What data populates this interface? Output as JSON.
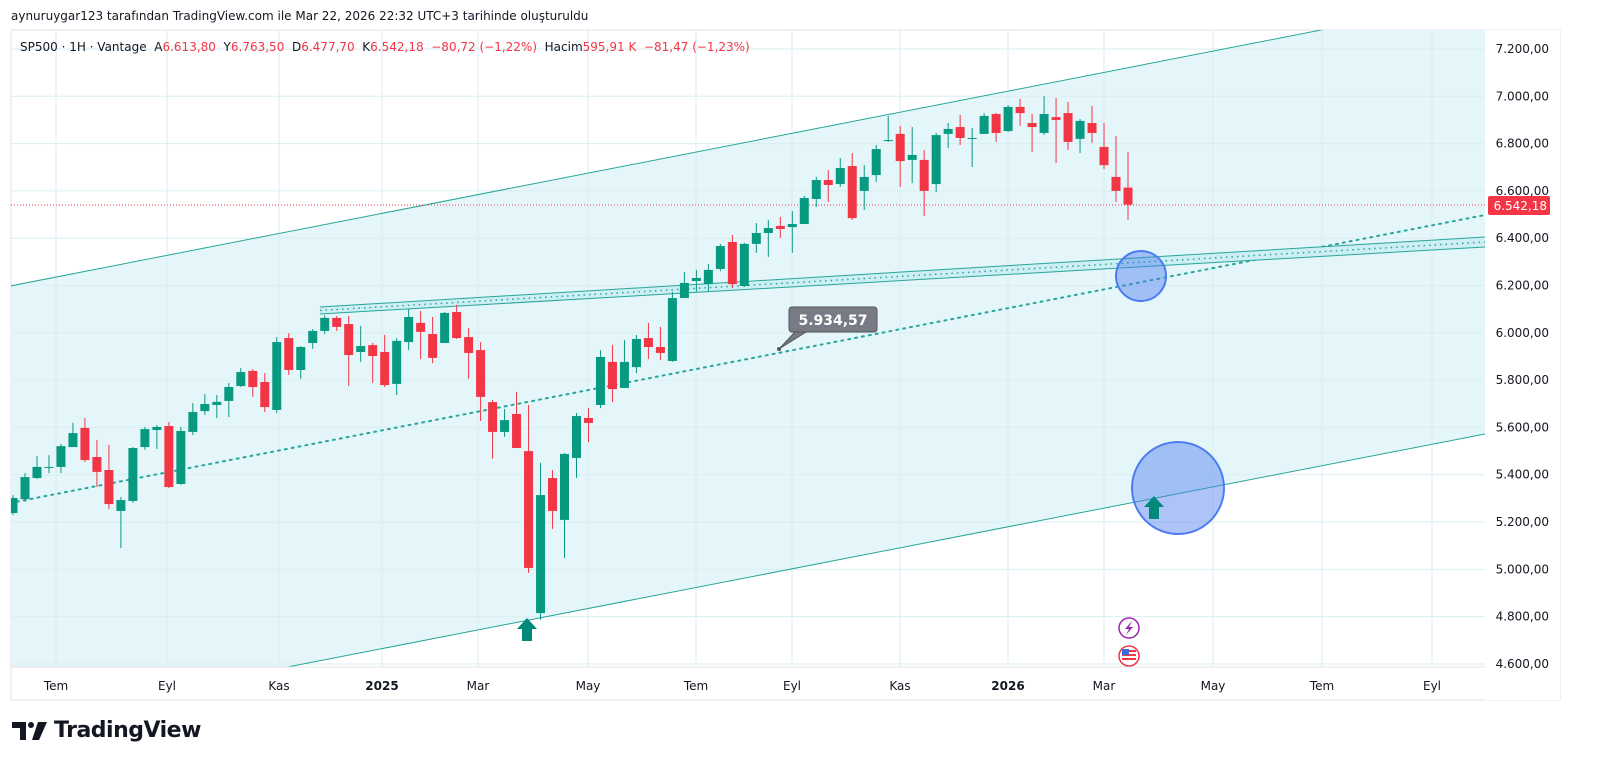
{
  "credit": "aynuruygar123 tarafından TradingView.com ile Mar 22, 2026 22:32 UTC+3 tarihinde oluşturuldu",
  "legend": {
    "symbol": "SP500 · 1H · Vantage",
    "open_label": "A",
    "open": "6.613,80",
    "high_label": "Y",
    "high": "6.763,50",
    "low_label": "D",
    "low": "6.477,70",
    "close_label": "K",
    "close": "6.542,18",
    "change": "−80,72 (−1,22%)",
    "volume_label": "Hacim",
    "volume": "595,91 K",
    "volume_change": "−81,47 (−1,23%)"
  },
  "brand": "TradingView",
  "colors": {
    "up": "#089981",
    "down": "#f23645",
    "channel": "#26a69a",
    "fill": "#e6f6fa",
    "circle": "#4c7cf0",
    "marker": "#00897b"
  },
  "chart_data": {
    "type": "candlestick",
    "title": "SP500 · 1H · Vantage",
    "ylim": [
      4600,
      7200
    ],
    "yticks": [
      4600,
      4800,
      5000,
      5200,
      5400,
      5600,
      5800,
      6000,
      6200,
      6400,
      6600,
      6800,
      7000,
      7200
    ],
    "ytick_labels": [
      "4.600,00",
      "4.800,00",
      "5.000,00",
      "5.200,00",
      "5.400,00",
      "5.600,00",
      "5.800,00",
      "6.000,00",
      "6.200,00",
      "6.400,00",
      "6.600,00",
      "6.800,00",
      "7.000,00",
      "7.200,00"
    ],
    "xtick_labels": [
      {
        "label": "Tem",
        "bold": false
      },
      {
        "label": "Eyl",
        "bold": false
      },
      {
        "label": "Kas",
        "bold": false
      },
      {
        "label": "2025",
        "bold": true
      },
      {
        "label": "Mar",
        "bold": false
      },
      {
        "label": "May",
        "bold": false
      },
      {
        "label": "Tem",
        "bold": false
      },
      {
        "label": "Eyl",
        "bold": false
      },
      {
        "label": "Kas",
        "bold": false
      },
      {
        "label": "2026",
        "bold": true
      },
      {
        "label": "Mar",
        "bold": false
      },
      {
        "label": "May",
        "bold": false
      },
      {
        "label": "Tem",
        "bold": false
      },
      {
        "label": "Eyl",
        "bold": false
      }
    ],
    "last_price": 6542.18,
    "last_price_label": "6.542,18",
    "callout_label": "5.934,57",
    "ohlc": [
      [
        5238,
        5314,
        5230,
        5302
      ],
      [
        5297,
        5407,
        5285,
        5390
      ],
      [
        5386,
        5479,
        5382,
        5433
      ],
      [
        5429,
        5483,
        5407,
        5433
      ],
      [
        5433,
        5530,
        5407,
        5521
      ],
      [
        5517,
        5619,
        5517,
        5576
      ],
      [
        5598,
        5640,
        5454,
        5462
      ],
      [
        5475,
        5547,
        5348,
        5412
      ],
      [
        5420,
        5526,
        5255,
        5276
      ],
      [
        5247,
        5306,
        5090,
        5293
      ],
      [
        5289,
        5517,
        5281,
        5513
      ],
      [
        5517,
        5602,
        5505,
        5593
      ],
      [
        5589,
        5610,
        5509,
        5602
      ],
      [
        5606,
        5623,
        5344,
        5348
      ],
      [
        5361,
        5602,
        5357,
        5585
      ],
      [
        5581,
        5703,
        5568,
        5665
      ],
      [
        5669,
        5741,
        5653,
        5699
      ],
      [
        5695,
        5737,
        5640,
        5708
      ],
      [
        5712,
        5788,
        5644,
        5771
      ],
      [
        5775,
        5851,
        5771,
        5834
      ],
      [
        5839,
        5847,
        5729,
        5771
      ],
      [
        5792,
        5830,
        5665,
        5686
      ],
      [
        5674,
        5982,
        5661,
        5961
      ],
      [
        5978,
        5999,
        5822,
        5843
      ],
      [
        5843,
        5944,
        5805,
        5940
      ],
      [
        5957,
        6016,
        5932,
        6008
      ],
      [
        6008,
        6075,
        5995,
        6063
      ],
      [
        6063,
        6071,
        6008,
        6025
      ],
      [
        6037,
        6071,
        5775,
        5906
      ],
      [
        5919,
        6029,
        5877,
        5944
      ],
      [
        5948,
        5957,
        5788,
        5902
      ],
      [
        5919,
        5991,
        5771,
        5779
      ],
      [
        5784,
        5978,
        5737,
        5966
      ],
      [
        5961,
        6101,
        5928,
        6067
      ],
      [
        6042,
        6092,
        5889,
        6004
      ],
      [
        5995,
        6067,
        5872,
        5894
      ],
      [
        5957,
        6088,
        5957,
        6084
      ],
      [
        6088,
        6118,
        5974,
        5978
      ],
      [
        5982,
        6020,
        5805,
        5915
      ],
      [
        5927,
        5961,
        5627,
        5729
      ],
      [
        5707,
        5716,
        5467,
        5581
      ],
      [
        5581,
        5678,
        5560,
        5631
      ],
      [
        5657,
        5750,
        5513,
        5513
      ],
      [
        5500,
        5695,
        4985,
        5006
      ],
      [
        4815,
        5450,
        4786,
        5314
      ],
      [
        5386,
        5420,
        5171,
        5247
      ],
      [
        5209,
        5492,
        5048,
        5488
      ],
      [
        5471,
        5661,
        5386,
        5648
      ],
      [
        5640,
        5682,
        5538,
        5619
      ],
      [
        5695,
        5927,
        5682,
        5898
      ],
      [
        5877,
        5949,
        5707,
        5762
      ],
      [
        5767,
        5970,
        5767,
        5877
      ],
      [
        5855,
        5991,
        5830,
        5974
      ],
      [
        5978,
        6042,
        5889,
        5940
      ],
      [
        5940,
        6025,
        5885,
        5915
      ],
      [
        5881,
        6173,
        5877,
        6147
      ],
      [
        6147,
        6257,
        6147,
        6211
      ],
      [
        6219,
        6266,
        6173,
        6232
      ],
      [
        6206,
        6291,
        6173,
        6266
      ],
      [
        6270,
        6376,
        6261,
        6367
      ],
      [
        6384,
        6414,
        6189,
        6206
      ],
      [
        6198,
        6380,
        6194,
        6376
      ],
      [
        6376,
        6464,
        6338,
        6422
      ],
      [
        6422,
        6477,
        6321,
        6443
      ],
      [
        6452,
        6490,
        6401,
        6439
      ],
      [
        6447,
        6515,
        6338,
        6460
      ],
      [
        6460,
        6579,
        6460,
        6570
      ],
      [
        6566,
        6659,
        6532,
        6646
      ],
      [
        6646,
        6688,
        6553,
        6625
      ],
      [
        6629,
        6739,
        6617,
        6697
      ],
      [
        6705,
        6760,
        6477,
        6485
      ],
      [
        6600,
        6709,
        6519,
        6659
      ],
      [
        6667,
        6794,
        6638,
        6777
      ],
      [
        6811,
        6917,
        6807,
        6815
      ],
      [
        6841,
        6875,
        6617,
        6726
      ],
      [
        6731,
        6870,
        6633,
        6752
      ],
      [
        6731,
        6773,
        6494,
        6600
      ],
      [
        6629,
        6845,
        6595,
        6836
      ],
      [
        6841,
        6887,
        6781,
        6862
      ],
      [
        6870,
        6921,
        6794,
        6824
      ],
      [
        6820,
        6866,
        6701,
        6824
      ],
      [
        6841,
        6929,
        6841,
        6917
      ],
      [
        6925,
        6929,
        6807,
        6845
      ],
      [
        6853,
        6963,
        6849,
        6955
      ],
      [
        6955,
        6989,
        6875,
        6929
      ],
      [
        6887,
        6925,
        6765,
        6870
      ],
      [
        6845,
        7001,
        6836,
        6925
      ],
      [
        6912,
        6993,
        6718,
        6900
      ],
      [
        6929,
        6976,
        6773,
        6807
      ],
      [
        6820,
        6904,
        6760,
        6896
      ],
      [
        6887,
        6959,
        6803,
        6845
      ],
      [
        6786,
        6887,
        6693,
        6709
      ],
      [
        6659,
        6832,
        6553,
        6600
      ],
      [
        6614,
        6764,
        6478,
        6542
      ]
    ]
  }
}
